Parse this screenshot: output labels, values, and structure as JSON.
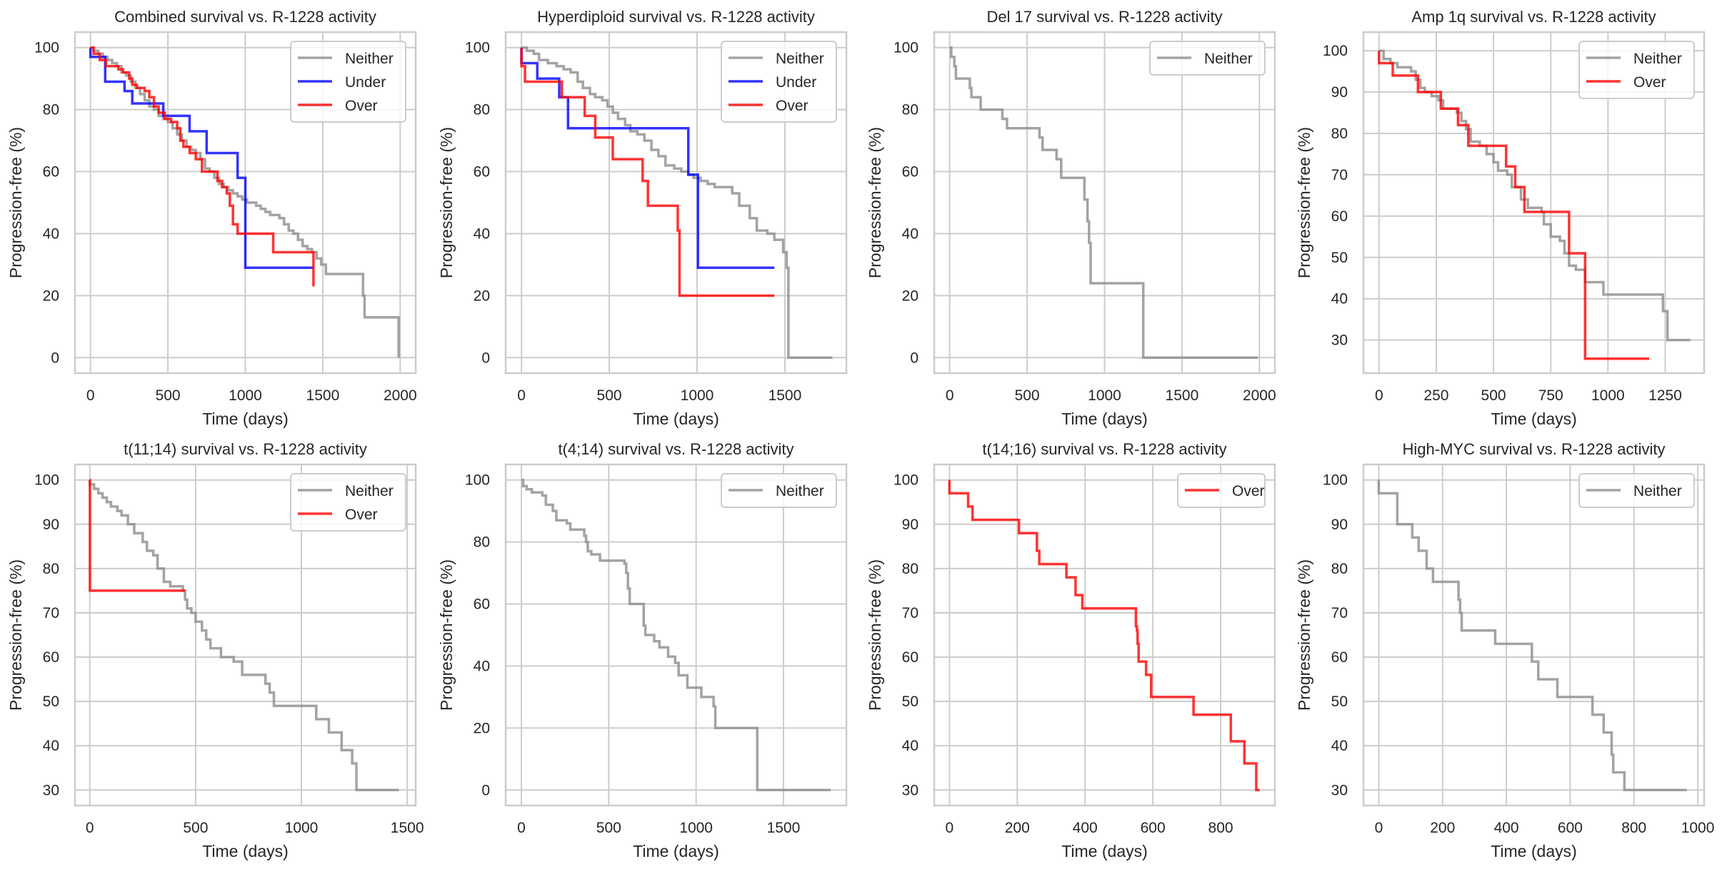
{
  "figure": {
    "style": {
      "background": "#ffffff",
      "grid_color": "#cccccc",
      "spine_color": "#cccccc",
      "text_color": "#262626",
      "series_colors": {
        "Neither": "#8c8c8c",
        "Under": "#0000ff",
        "Over": "#ff0000"
      },
      "series_alpha": 0.8
    }
  },
  "chart_data": [
    {
      "type": "line",
      "step": true,
      "title": "Combined survival vs. R-1228 activity",
      "xlabel": "Time (days)",
      "ylabel": "Progression-free (%)",
      "xlim": [
        -100,
        2100
      ],
      "ylim": [
        -5,
        105
      ],
      "xticks": [
        0,
        500,
        1000,
        1500,
        2000
      ],
      "yticks": [
        0,
        20,
        40,
        60,
        80,
        100
      ],
      "grid": true,
      "legend": {
        "position": "top-right",
        "entries": [
          "Neither",
          "Under",
          "Over"
        ]
      },
      "series": [
        {
          "name": "Neither",
          "x": [
            0,
            20,
            50,
            80,
            110,
            140,
            170,
            200,
            230,
            260,
            290,
            320,
            350,
            380,
            410,
            440,
            470,
            500,
            530,
            560,
            590,
            620,
            650,
            680,
            710,
            740,
            770,
            800,
            830,
            860,
            890,
            920,
            950,
            980,
            1010,
            1040,
            1070,
            1100,
            1130,
            1160,
            1190,
            1220,
            1250,
            1280,
            1310,
            1340,
            1370,
            1400,
            1430,
            1460,
            1490,
            1510,
            1520,
            1760,
            1770,
            1990
          ],
          "y": [
            100,
            99,
            98,
            97,
            96,
            95,
            94,
            92,
            91,
            89,
            87,
            85,
            83,
            81,
            80,
            78,
            77,
            76,
            74,
            72,
            70,
            68,
            67,
            66,
            64,
            61,
            60,
            58,
            56,
            55,
            54,
            53,
            52,
            51,
            50,
            50,
            49,
            48,
            47,
            46,
            46,
            45,
            43,
            41,
            40,
            38,
            36,
            35,
            34,
            32,
            30,
            30,
            27,
            20,
            13,
            0
          ]
        },
        {
          "name": "Under",
          "x": [
            0,
            95,
            220,
            270,
            470,
            640,
            750,
            950,
            1000,
            1440
          ],
          "y": [
            97,
            89,
            86,
            82,
            78,
            73,
            66,
            58,
            29,
            29
          ]
        },
        {
          "name": "Over",
          "x": [
            0,
            20,
            60,
            100,
            180,
            210,
            250,
            270,
            300,
            350,
            380,
            410,
            440,
            480,
            520,
            560,
            580,
            600,
            640,
            680,
            720,
            820,
            850,
            880,
            900,
            920,
            950,
            1180,
            1440
          ],
          "y": [
            100,
            98,
            96,
            94,
            93,
            92,
            90,
            88,
            87,
            86,
            84,
            81,
            79,
            77,
            76,
            74,
            70,
            68,
            66,
            64,
            60,
            57,
            55,
            53,
            49,
            43,
            40,
            34,
            23
          ]
        }
      ]
    },
    {
      "type": "line",
      "step": true,
      "title": "Hyperdiploid survival vs. R-1228 activity",
      "xlabel": "Time (days)",
      "ylabel": "Progression-free (%)",
      "xlim": [
        -90,
        1850
      ],
      "ylim": [
        -5,
        105
      ],
      "xticks": [
        0,
        500,
        1000,
        1500
      ],
      "yticks": [
        0,
        20,
        40,
        60,
        80,
        100
      ],
      "grid": true,
      "legend": {
        "position": "top-right",
        "entries": [
          "Neither",
          "Under",
          "Over"
        ]
      },
      "series": [
        {
          "name": "Neither",
          "x": [
            0,
            30,
            70,
            100,
            150,
            200,
            240,
            280,
            320,
            350,
            390,
            420,
            460,
            490,
            520,
            550,
            590,
            620,
            660,
            700,
            740,
            780,
            820,
            870,
            910,
            950,
            980,
            1020,
            1060,
            1100,
            1160,
            1200,
            1240,
            1300,
            1340,
            1400,
            1440,
            1490,
            1510,
            1520,
            1770
          ],
          "y": [
            100,
            99,
            98,
            96,
            95,
            94,
            93,
            92,
            89,
            87,
            85,
            84,
            83,
            81,
            79,
            77,
            75,
            73,
            72,
            70,
            67,
            65,
            62,
            61,
            60,
            59,
            58,
            57,
            56,
            55,
            55,
            53,
            49,
            45,
            41,
            40,
            38,
            34,
            29,
            0,
            0
          ]
        },
        {
          "name": "Under",
          "x": [
            0,
            90,
            215,
            265,
            950,
            1005,
            1440
          ],
          "y": [
            95,
            90,
            84,
            74,
            59,
            29,
            29
          ]
        },
        {
          "name": "Over",
          "x": [
            0,
            20,
            230,
            360,
            420,
            520,
            690,
            720,
            890,
            900,
            1440
          ],
          "y": [
            94,
            89,
            84,
            78,
            71,
            64,
            57,
            49,
            41,
            20,
            20
          ]
        }
      ]
    },
    {
      "type": "line",
      "step": true,
      "title": "Del 17 survival vs. R-1228 activity",
      "xlabel": "Time (days)",
      "ylabel": "Progression-free (%)",
      "xlim": [
        -100,
        2100
      ],
      "ylim": [
        -5,
        105
      ],
      "xticks": [
        0,
        500,
        1000,
        1500,
        2000
      ],
      "yticks": [
        0,
        20,
        40,
        60,
        80,
        100
      ],
      "grid": true,
      "legend": {
        "position": "top-right",
        "entries": [
          "Neither"
        ]
      },
      "series": [
        {
          "name": "Neither",
          "x": [
            0,
            10,
            30,
            40,
            130,
            140,
            200,
            340,
            370,
            580,
            600,
            690,
            720,
            870,
            890,
            900,
            910,
            1250,
            1990
          ],
          "y": [
            100,
            97,
            94,
            90,
            87,
            84,
            80,
            77,
            74,
            71,
            67,
            64,
            58,
            51,
            44,
            37,
            24,
            0,
            0
          ]
        }
      ]
    },
    {
      "type": "line",
      "step": true,
      "title": "Amp 1q survival vs. R-1228 activity",
      "xlabel": "Time (days)",
      "ylabel": "Progression-free (%)",
      "xlim": [
        -68,
        1420
      ],
      "ylim": [
        22,
        104.5
      ],
      "xticks": [
        0,
        250,
        500,
        750,
        1000,
        1250
      ],
      "yticks": [
        30,
        40,
        50,
        60,
        70,
        80,
        90,
        100
      ],
      "grid": true,
      "legend": {
        "position": "top-right",
        "entries": [
          "Neither",
          "Over"
        ]
      },
      "series": [
        {
          "name": "Neither",
          "x": [
            0,
            20,
            50,
            80,
            140,
            160,
            180,
            200,
            230,
            260,
            280,
            340,
            360,
            380,
            400,
            440,
            470,
            500,
            520,
            560,
            580,
            620,
            650,
            710,
            720,
            750,
            790,
            810,
            830,
            860,
            900,
            980,
            1240,
            1260,
            1360
          ],
          "y": [
            100,
            98,
            97,
            96,
            95,
            93,
            91,
            90,
            89,
            88,
            86,
            85,
            83,
            81,
            78,
            77,
            75,
            73,
            71,
            70,
            67,
            64,
            62,
            61,
            58,
            55,
            54,
            51,
            48,
            47,
            44,
            41,
            37,
            30,
            30
          ]
        },
        {
          "name": "Over",
          "x": [
            0,
            60,
            170,
            270,
            345,
            390,
            555,
            595,
            635,
            830,
            900,
            1180
          ],
          "y": [
            97,
            94,
            90,
            86,
            82,
            77,
            72,
            67,
            61,
            51,
            25.5,
            25.5
          ]
        }
      ]
    },
    {
      "type": "line",
      "step": true,
      "title": "t(11;14) survival vs. R-1228 activity",
      "xlabel": "Time (days)",
      "ylabel": "Progression-free (%)",
      "xlim": [
        -70,
        1540
      ],
      "ylim": [
        26.5,
        103.5
      ],
      "xticks": [
        0,
        500,
        1000,
        1500
      ],
      "yticks": [
        30,
        40,
        50,
        60,
        70,
        80,
        90,
        100
      ],
      "grid": true,
      "legend": {
        "position": "top-right",
        "entries": [
          "Neither",
          "Over"
        ]
      },
      "series": [
        {
          "name": "Neither",
          "x": [
            0,
            20,
            40,
            60,
            80,
            100,
            130,
            150,
            180,
            210,
            250,
            270,
            300,
            320,
            350,
            380,
            440,
            450,
            460,
            480,
            500,
            530,
            550,
            570,
            620,
            680,
            720,
            830,
            850,
            870,
            1070,
            1130,
            1190,
            1240,
            1260,
            1460
          ],
          "y": [
            99,
            98,
            97,
            96,
            95,
            94,
            93,
            92,
            90,
            88,
            86,
            84,
            83,
            80,
            77,
            76,
            75,
            73,
            71,
            70,
            68,
            66,
            64,
            62,
            60,
            59,
            56,
            54,
            52,
            49,
            46,
            43,
            39,
            36,
            30,
            30
          ]
        },
        {
          "name": "Over",
          "x": [
            0,
            0.5,
            450
          ],
          "y": [
            100,
            75,
            75
          ]
        }
      ]
    },
    {
      "type": "line",
      "step": true,
      "title": "t(4;14) survival vs. R-1228 activity",
      "xlabel": "Time (days)",
      "ylabel": "Progression-free (%)",
      "xlim": [
        -90,
        1860
      ],
      "ylim": [
        -5,
        105
      ],
      "xticks": [
        0,
        500,
        1000,
        1500
      ],
      "yticks": [
        0,
        20,
        40,
        60,
        80,
        100
      ],
      "grid": true,
      "legend": {
        "position": "top-right",
        "entries": [
          "Neither"
        ]
      },
      "series": [
        {
          "name": "Neither",
          "x": [
            0,
            10,
            30,
            60,
            120,
            140,
            180,
            200,
            260,
            280,
            360,
            370,
            380,
            400,
            450,
            590,
            600,
            610,
            620,
            700,
            710,
            760,
            790,
            840,
            880,
            900,
            950,
            1030,
            1100,
            1110,
            1350,
            1770
          ],
          "y": [
            100,
            98,
            97,
            96,
            95,
            92,
            90,
            87,
            86,
            84,
            82,
            80,
            77,
            76,
            74,
            73,
            70,
            65,
            60,
            53,
            50,
            48,
            46,
            43,
            41,
            37,
            33,
            30,
            27,
            20,
            0,
            0
          ]
        }
      ]
    },
    {
      "type": "line",
      "step": true,
      "title": "t(14;16) survival vs. R-1228 activity",
      "xlabel": "Time (days)",
      "ylabel": "Progression-free (%)",
      "xlim": [
        -45,
        960
      ],
      "ylim": [
        26.5,
        103.5
      ],
      "xticks": [
        0,
        200,
        400,
        600,
        800
      ],
      "yticks": [
        30,
        40,
        50,
        60,
        70,
        80,
        90,
        100
      ],
      "grid": true,
      "legend": {
        "position": "top-right",
        "entries": [
          "Over"
        ]
      },
      "series": [
        {
          "name": "Over",
          "x": [
            0,
            55,
            68,
            205,
            258,
            265,
            345,
            372,
            392,
            550,
            553,
            555,
            558,
            580,
            595,
            720,
            830,
            870,
            905,
            915
          ],
          "y": [
            97,
            94,
            91,
            88,
            84,
            81,
            78,
            74,
            71,
            67,
            66,
            63,
            59,
            56,
            51,
            47,
            41,
            36,
            30,
            30
          ]
        }
      ]
    },
    {
      "type": "line",
      "step": true,
      "title": "High-MYC survival vs. R-1228 activity",
      "xlabel": "Time (days)",
      "ylabel": "Progression-free (%)",
      "xlim": [
        -48,
        1020
      ],
      "ylim": [
        26.5,
        103.5
      ],
      "xticks": [
        0,
        200,
        400,
        600,
        800,
        1000
      ],
      "yticks": [
        30,
        40,
        50,
        60,
        70,
        80,
        90,
        100
      ],
      "grid": true,
      "legend": {
        "position": "top-right",
        "entries": [
          "Neither"
        ]
      },
      "series": [
        {
          "name": "Neither",
          "x": [
            0,
            58,
            105,
            125,
            150,
            170,
            250,
            255,
            260,
            365,
            480,
            500,
            560,
            670,
            705,
            730,
            735,
            770,
            965
          ],
          "y": [
            97,
            90,
            87,
            84,
            80,
            77,
            73,
            70,
            66,
            63,
            59,
            55,
            51,
            47,
            43,
            38,
            34,
            30,
            30
          ]
        }
      ]
    }
  ]
}
